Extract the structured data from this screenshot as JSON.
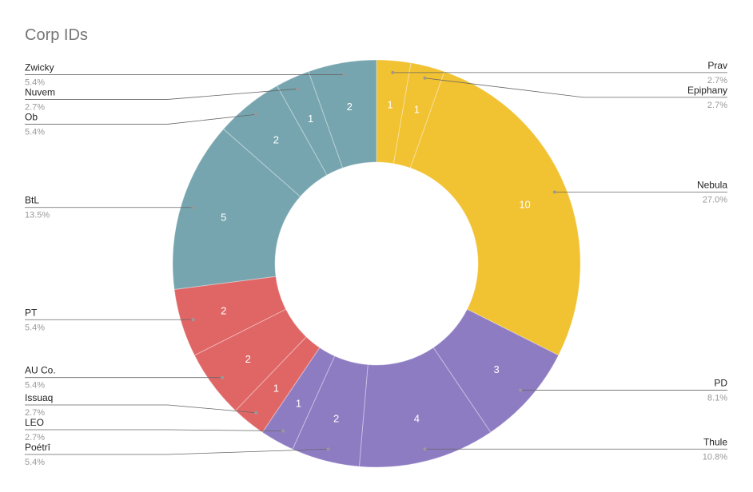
{
  "chart_data": {
    "type": "donut",
    "title": "Corp IDs",
    "categories": [
      "Prav",
      "Epiphany",
      "Nebula",
      "PD",
      "Thule",
      "Poétrī",
      "LEO",
      "Issuaq",
      "AU Co.",
      "PT",
      "BtL",
      "Ob",
      "Nuvem",
      "Zwicky"
    ],
    "values": [
      1,
      1,
      10,
      3,
      4,
      2,
      1,
      1,
      2,
      2,
      5,
      2,
      1,
      2
    ],
    "percent_labels": [
      "2.7%",
      "2.7%",
      "27.0%",
      "8.1%",
      "10.8%",
      "5.4%",
      "2.7%",
      "2.7%",
      "5.4%",
      "5.4%",
      "13.5%",
      "5.4%",
      "2.7%",
      "5.4%"
    ],
    "colors": [
      "#f1c232",
      "#f1c232",
      "#f1c232",
      "#8e7cc3",
      "#8e7cc3",
      "#8e7cc3",
      "#8e7cc3",
      "#e06666",
      "#e06666",
      "#e06666",
      "#76a5af",
      "#76a5af",
      "#76a5af",
      "#76a5af"
    ]
  }
}
